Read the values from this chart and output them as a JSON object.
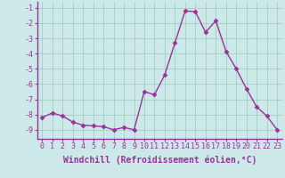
{
  "x": [
    0,
    1,
    2,
    3,
    4,
    5,
    6,
    7,
    8,
    9,
    10,
    11,
    12,
    13,
    14,
    15,
    16,
    17,
    18,
    19,
    20,
    21,
    22,
    23
  ],
  "y": [
    -8.2,
    -7.9,
    -8.1,
    -8.5,
    -8.7,
    -8.75,
    -8.8,
    -9.0,
    -8.85,
    -9.0,
    -6.5,
    -6.7,
    -5.4,
    -3.3,
    -1.2,
    -1.25,
    -2.6,
    -1.85,
    -3.85,
    -5.0,
    -6.3,
    -7.5,
    -8.1,
    -9.0
  ],
  "line_color": "#993399",
  "marker": "D",
  "marker_size": 2.5,
  "bg_color": "#cce8e8",
  "grid_color": "#99ccbb",
  "xlabel": "Windchill (Refroidissement éolien,°C)",
  "ylim": [
    -9.6,
    -0.6
  ],
  "xlim": [
    -0.5,
    23.5
  ],
  "yticks": [
    -9,
    -8,
    -7,
    -6,
    -5,
    -4,
    -3,
    -2,
    -1
  ],
  "xticks": [
    0,
    1,
    2,
    3,
    4,
    5,
    6,
    7,
    8,
    9,
    10,
    11,
    12,
    13,
    14,
    15,
    16,
    17,
    18,
    19,
    20,
    21,
    22,
    23
  ],
  "tick_fontsize": 6,
  "xlabel_fontsize": 7,
  "line_width": 1.0,
  "spine_color": "#993399"
}
